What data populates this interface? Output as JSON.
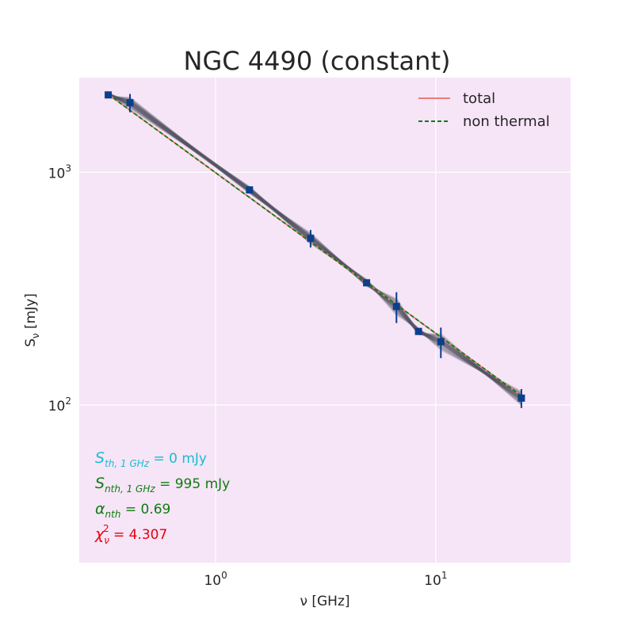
{
  "chart_data": {
    "type": "scatter",
    "title": "NGC 4490 (constant)",
    "xlabel": "ν [GHz]",
    "ylabel": "S",
    "ylabel_sub": "ν",
    "ylabel_unit": "[mJy]",
    "xscale": "log",
    "yscale": "log",
    "xlim": [
      0.24,
      41
    ],
    "ylim": [
      21,
      2550
    ],
    "x_ticks": [
      {
        "value": 1,
        "base": "10",
        "exp": "0"
      },
      {
        "value": 10,
        "base": "10",
        "exp": "1"
      }
    ],
    "y_ticks": [
      {
        "value": 100,
        "base": "10",
        "exp": "2"
      },
      {
        "value": 1000,
        "base": "10",
        "exp": "3"
      }
    ],
    "grid": true,
    "background_color": "#f6e4f7",
    "legend": {
      "placement": "top-right",
      "entries": [
        {
          "label": "total",
          "color": "#ef7b7b",
          "style": "solid"
        },
        {
          "label": "non thermal",
          "color": "#0e7d0e",
          "style": "dashed"
        }
      ]
    },
    "series": [
      {
        "name": "data",
        "color": "#0b3f8c",
        "points": [
          {
            "x": 0.325,
            "y": 2150,
            "err": 40
          },
          {
            "x": 0.408,
            "y": 1990,
            "err": 180
          },
          {
            "x": 1.425,
            "y": 840,
            "err": 25
          },
          {
            "x": 2.7,
            "y": 520,
            "err": 45
          },
          {
            "x": 4.85,
            "y": 335,
            "err": 10
          },
          {
            "x": 6.63,
            "y": 265,
            "err": 40
          },
          {
            "x": 8.35,
            "y": 207,
            "err": 6
          },
          {
            "x": 10.55,
            "y": 187,
            "err": 28
          },
          {
            "x": 24.5,
            "y": 107,
            "err": 10
          }
        ]
      }
    ],
    "model": {
      "non_thermal": {
        "norm_mJy_at_1GHz": 995,
        "alpha": 0.69
      },
      "total": {
        "norm_mJy_at_1GHz": 995,
        "alpha": 0.69
      }
    },
    "annotations": [
      {
        "sym": "S",
        "sub": "th, 1 GHz",
        "text": " = 0 mJy",
        "color": "#17becf"
      },
      {
        "sym": "S",
        "sub": "nth, 1 GHz",
        "text": " = 995 mJy",
        "color": "#0e7d0e"
      },
      {
        "sym": "α",
        "sub": "nth",
        "text": " = 0.69",
        "color": "#0e7d0e"
      },
      {
        "sym": "χ",
        "sub": "ν",
        "sup": "2",
        "text": " = 4.307",
        "color": "#e8000b"
      }
    ]
  }
}
